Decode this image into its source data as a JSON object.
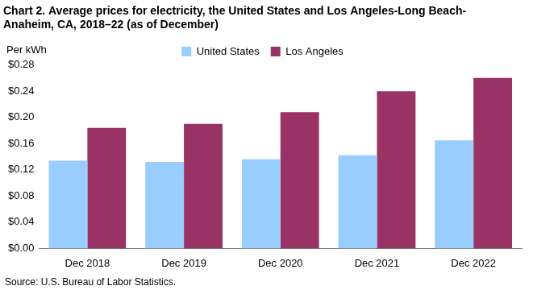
{
  "chart_data": {
    "type": "bar",
    "title": [
      "Chart 2. Average prices for electricity, the United States and Los Angeles-Long Beach-",
      "Anaheim, CA, 2018–22 (as of December)"
    ],
    "y_label": "Per kWh",
    "source": "Source: U.S. Bureau of Labor Statistics.",
    "categories": [
      "Dec 2018",
      "Dec 2019",
      "Dec 2020",
      "Dec 2021",
      "Dec 2022"
    ],
    "series": [
      {
        "name": "United States",
        "color": "#99ccff",
        "values": [
          0.134,
          0.132,
          0.136,
          0.142,
          0.165
        ]
      },
      {
        "name": "Los Angeles",
        "color": "#993366",
        "values": [
          0.184,
          0.19,
          0.208,
          0.24,
          0.26
        ]
      }
    ],
    "ylim": [
      0,
      0.28
    ],
    "yticks": [
      {
        "value": 0,
        "label": "$0.00"
      },
      {
        "value": 0.04,
        "label": "$0.04"
      },
      {
        "value": 0.08,
        "label": "$0.08"
      },
      {
        "value": 0.12,
        "label": "$0.12"
      },
      {
        "value": 0.16,
        "label": "$0.16"
      },
      {
        "value": 0.2,
        "label": "$0.20"
      },
      {
        "value": 0.24,
        "label": "$0.24"
      },
      {
        "value": 0.28,
        "label": "$0.28"
      }
    ],
    "grid": false,
    "legend": "top"
  }
}
